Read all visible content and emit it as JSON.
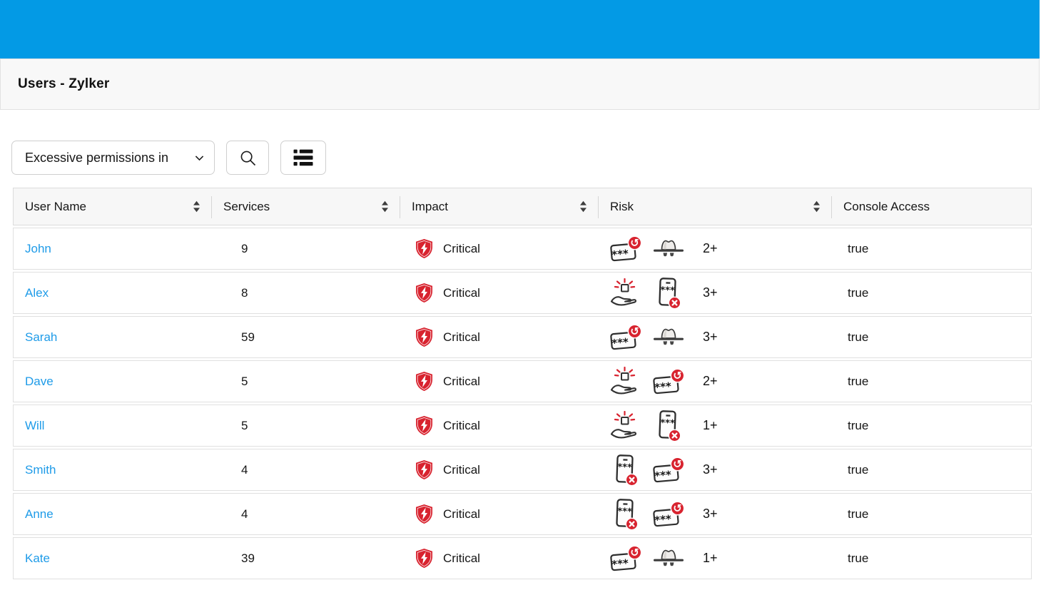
{
  "page": {
    "title": "Users - Zylker"
  },
  "toolbar": {
    "filter_dropdown": {
      "value": "Excessive permissions in",
      "icon": "chevron-down-icon"
    },
    "search_button": {
      "icon": "search-icon"
    },
    "list_view_button": {
      "icon": "list-icon"
    }
  },
  "table": {
    "columns": [
      {
        "label": "User Name",
        "sortable": true
      },
      {
        "label": "Services",
        "sortable": true
      },
      {
        "label": "Impact",
        "sortable": true
      },
      {
        "label": "Risk",
        "sortable": true
      },
      {
        "label": "Console Access",
        "sortable": false
      }
    ],
    "rows": [
      {
        "user_name": "John",
        "services": "9",
        "impact": {
          "icon": "shield-critical-icon",
          "label": "Critical"
        },
        "risk": {
          "icons": [
            "password-rotation-icon",
            "incognito-hat-icon"
          ],
          "count": "2+"
        },
        "console_access": "true"
      },
      {
        "user_name": "Alex",
        "services": "8",
        "impact": {
          "icon": "shield-critical-icon",
          "label": "Critical"
        },
        "risk": {
          "icons": [
            "privilege-grant-icon",
            "mfa-disabled-icon"
          ],
          "count": "3+"
        },
        "console_access": "true"
      },
      {
        "user_name": "Sarah",
        "services": "59",
        "impact": {
          "icon": "shield-critical-icon",
          "label": "Critical"
        },
        "risk": {
          "icons": [
            "password-rotation-icon",
            "incognito-hat-icon"
          ],
          "count": "3+"
        },
        "console_access": "true"
      },
      {
        "user_name": "Dave",
        "services": "5",
        "impact": {
          "icon": "shield-critical-icon",
          "label": "Critical"
        },
        "risk": {
          "icons": [
            "privilege-grant-icon",
            "password-rotation-icon"
          ],
          "count": "2+"
        },
        "console_access": "true"
      },
      {
        "user_name": "Will",
        "services": "5",
        "impact": {
          "icon": "shield-critical-icon",
          "label": "Critical"
        },
        "risk": {
          "icons": [
            "privilege-grant-icon",
            "mfa-disabled-icon"
          ],
          "count": "1+"
        },
        "console_access": "true"
      },
      {
        "user_name": "Smith",
        "services": "4",
        "impact": {
          "icon": "shield-critical-icon",
          "label": "Critical"
        },
        "risk": {
          "icons": [
            "mfa-disabled-icon",
            "password-rotation-icon"
          ],
          "count": "3+"
        },
        "console_access": "true"
      },
      {
        "user_name": "Anne",
        "services": "4",
        "impact": {
          "icon": "shield-critical-icon",
          "label": "Critical"
        },
        "risk": {
          "icons": [
            "mfa-disabled-icon",
            "password-rotation-icon"
          ],
          "count": "3+"
        },
        "console_access": "true"
      },
      {
        "user_name": "Kate",
        "services": "39",
        "impact": {
          "icon": "shield-critical-icon",
          "label": "Critical"
        },
        "risk": {
          "icons": [
            "password-rotation-icon",
            "incognito-hat-icon"
          ],
          "count": "1+"
        },
        "console_access": "true"
      }
    ]
  },
  "colors": {
    "accent_blue": "#039AE5",
    "link_blue": "#1E9BE8",
    "status_red": "#D8232F"
  }
}
